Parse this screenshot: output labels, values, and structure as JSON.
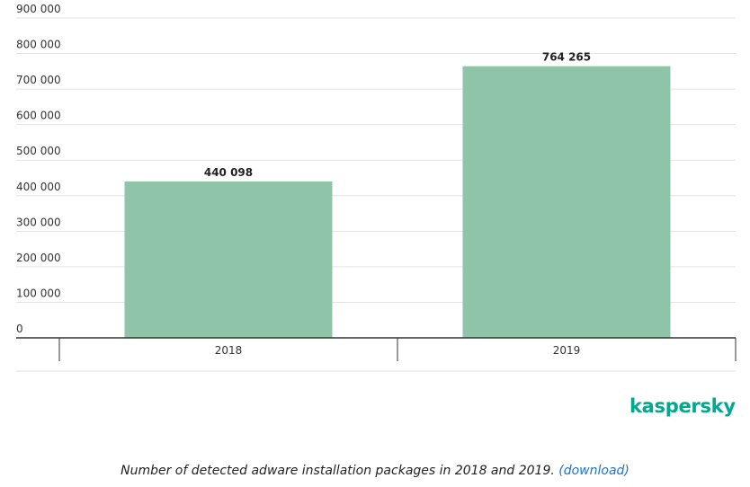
{
  "chart_data": {
    "type": "bar",
    "title": "",
    "xlabel": "",
    "ylabel": "",
    "categories": [
      "2018",
      "2019"
    ],
    "values": [
      440098,
      764265
    ],
    "value_labels": [
      "440 098",
      "764 265"
    ],
    "ylim": [
      0,
      900000
    ],
    "yticks": [
      0,
      100000,
      200000,
      300000,
      400000,
      500000,
      600000,
      700000,
      800000,
      900000
    ],
    "ytick_labels": [
      "0",
      "100 000",
      "200 000",
      "300 000",
      "400 000",
      "500 000",
      "600 000",
      "700 000",
      "800 000",
      "900 000"
    ],
    "grid": true,
    "legend": "none",
    "bar_color": "#8fc4a8"
  },
  "branding": {
    "logo_text": "kaspersky",
    "logo_color": "#00a88e"
  },
  "caption": {
    "text": "Number of detected adware installation packages in 2018 and 2019.",
    "link_text": "(download)",
    "link_color": "#1a73c8"
  }
}
